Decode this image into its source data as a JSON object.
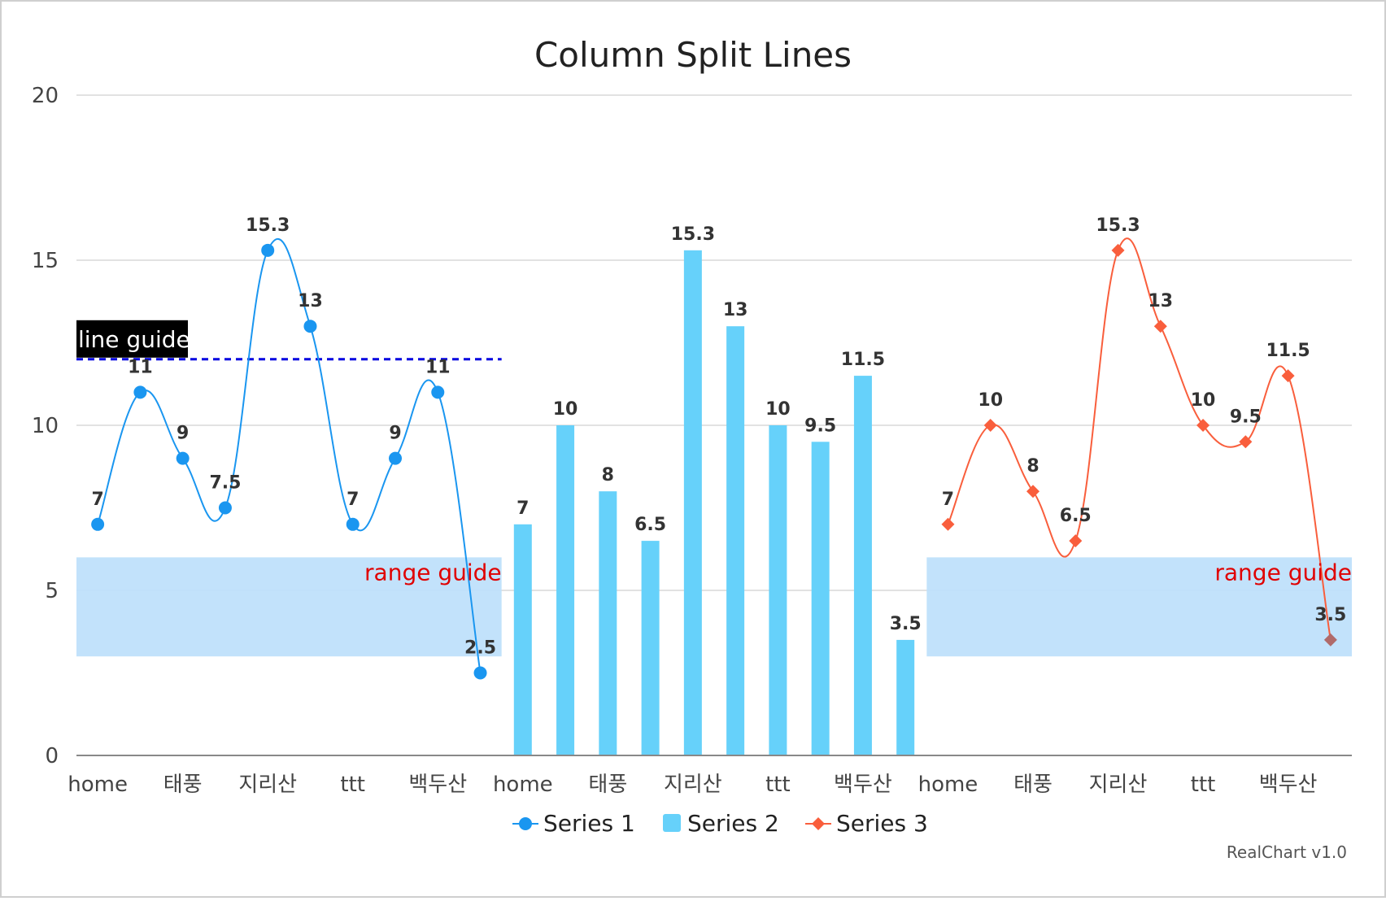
{
  "chart_data": {
    "type": "line",
    "title": "Column Split Lines",
    "ylim": [
      0,
      20
    ],
    "yticks": [
      0,
      5,
      10,
      15,
      20
    ],
    "grid": true,
    "legend_position": "bottom",
    "credits": "RealChart v1.0",
    "categories": [
      "home",
      "태풍",
      "지리산",
      "ttt",
      "백두산"
    ],
    "panes": [
      {
        "series": "Series 1",
        "type": "spline",
        "color": "#1a96f0",
        "marker": "circle",
        "values": [
          7,
          11,
          9,
          7.5,
          15.3,
          13,
          7,
          9,
          11,
          2.5
        ],
        "guides": [
          {
            "kind": "line",
            "label": "line guide",
            "value": 12,
            "color": "#0000e0"
          },
          {
            "kind": "range",
            "label": "range guide",
            "from": 3,
            "to": 6
          }
        ]
      },
      {
        "series": "Series 2",
        "type": "bar",
        "color": "#66d1fa",
        "values": [
          7,
          10,
          8,
          6.5,
          15.3,
          13,
          10,
          9.5,
          11.5,
          3.5
        ],
        "guides": []
      },
      {
        "series": "Series 3",
        "type": "spline",
        "color": "#f95e3c",
        "marker": "diamond",
        "values": [
          7,
          10,
          8,
          6.5,
          15.3,
          13,
          10,
          9.5,
          11.5,
          3.5
        ],
        "guides": [
          {
            "kind": "range",
            "label": "range guide",
            "from": 3,
            "to": 6
          }
        ]
      }
    ],
    "series": [
      {
        "name": "Series 1",
        "color": "#1a96f0",
        "marker": "circle"
      },
      {
        "name": "Series 2",
        "color": "#66d1fa",
        "marker": "square"
      },
      {
        "name": "Series 3",
        "color": "#f95e3c",
        "marker": "diamond"
      }
    ]
  }
}
